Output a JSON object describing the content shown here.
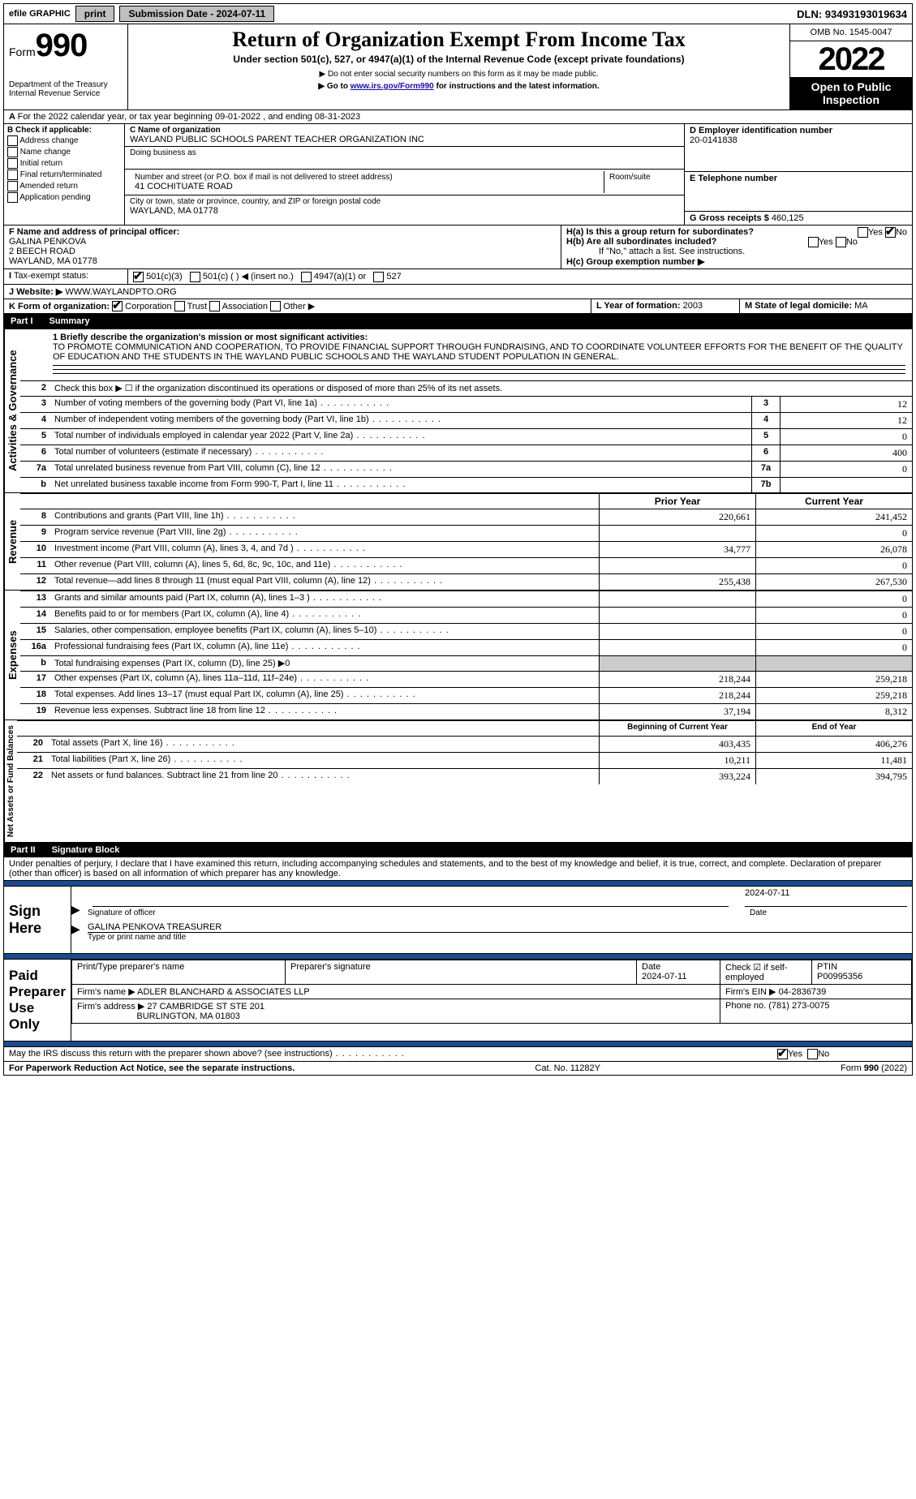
{
  "topbar": {
    "efile": "efile GRAPHIC",
    "print": "print",
    "submission": "Submission Date - 2024-07-11",
    "dln": "DLN: 93493193019634"
  },
  "header": {
    "form_prefix": "Form",
    "form_num": "990",
    "dept": "Department of the Treasury",
    "irs": "Internal Revenue Service",
    "title": "Return of Organization Exempt From Income Tax",
    "subtitle": "Under section 501(c), 527, or 4947(a)(1) of the Internal Revenue Code (except private foundations)",
    "note1": "▶ Do not enter social security numbers on this form as it may be made public.",
    "note2_pre": "▶ Go to ",
    "note2_link": "www.irs.gov/Form990",
    "note2_post": " for instructions and the latest information.",
    "omb": "OMB No. 1545-0047",
    "year": "2022",
    "otp": "Open to Public Inspection"
  },
  "A": {
    "text": "For the 2022 calendar year, or tax year beginning 09-01-2022    , and ending 08-31-2023"
  },
  "B": {
    "label": "B Check if applicable:",
    "items": [
      "Address change",
      "Name change",
      "Initial return",
      "Final return/terminated",
      "Amended return",
      "Application pending"
    ]
  },
  "C": {
    "name_label": "C Name of organization",
    "name": "WAYLAND PUBLIC SCHOOLS PARENT TEACHER ORGANIZATION INC",
    "dba_label": "Doing business as",
    "street_label": "Number and street (or P.O. box if mail is not delivered to street address)",
    "street": "41 COCHITUATE ROAD",
    "room_label": "Room/suite",
    "city_label": "City or town, state or province, country, and ZIP or foreign postal code",
    "city": "WAYLAND, MA  01778"
  },
  "D": {
    "label": "D Employer identification number",
    "val": "20-0141838"
  },
  "E": {
    "label": "E Telephone number"
  },
  "G": {
    "label": "G Gross receipts $",
    "val": "460,125"
  },
  "F": {
    "label": "F  Name and address of principal officer:",
    "name": "GALINA PENKOVA",
    "addr1": "2 BEECH ROAD",
    "addr2": "WAYLAND, MA  01778"
  },
  "H": {
    "a": "H(a)  Is this a group return for subordinates?",
    "b": "H(b)  Are all subordinates included?",
    "note": "If \"No,\" attach a list. See instructions.",
    "c": "H(c)  Group exemption number ▶",
    "yes": "Yes",
    "no": "No"
  },
  "I": {
    "label": "Tax-exempt status:",
    "opts": [
      "501(c)(3)",
      "501(c) (  ) ◀ (insert no.)",
      "4947(a)(1) or",
      "527"
    ]
  },
  "J": {
    "label": "Website: ▶",
    "val": "WWW.WAYLANDPTO.ORG"
  },
  "K": {
    "label": "K Form of organization:",
    "opts": [
      "Corporation",
      "Trust",
      "Association",
      "Other ▶"
    ]
  },
  "L": {
    "label": "L Year of formation:",
    "val": "2003"
  },
  "M": {
    "label": "M State of legal domicile:",
    "val": "MA"
  },
  "partI": {
    "label": "Part I",
    "title": "Summary"
  },
  "summary": {
    "l1_label": "1  Briefly describe the organization's mission or most significant activities:",
    "l1_text": "TO PROMOTE COMMUNICATION AND COOPERATION, TO PROVIDE FINANCIAL SUPPORT THROUGH FUNDRAISING, AND TO COORDINATE VOLUNTEER EFFORTS FOR THE BENEFIT OF THE QUALITY OF EDUCATION AND THE STUDENTS IN THE WAYLAND PUBLIC SCHOOLS AND THE WAYLAND STUDENT POPULATION IN GENERAL.",
    "l2": "Check this box ▶ ☐  if the organization discontinued its operations or disposed of more than 25% of its net assets.",
    "rows_ag": [
      {
        "n": "3",
        "desc": "Number of voting members of the governing body (Part VI, line 1a)",
        "val": "12"
      },
      {
        "n": "4",
        "desc": "Number of independent voting members of the governing body (Part VI, line 1b)",
        "val": "12"
      },
      {
        "n": "5",
        "desc": "Total number of individuals employed in calendar year 2022 (Part V, line 2a)",
        "val": "0"
      },
      {
        "n": "6",
        "desc": "Total number of volunteers (estimate if necessary)",
        "val": "400"
      },
      {
        "n": "7a",
        "desc": "Total unrelated business revenue from Part VIII, column (C), line 12",
        "val": "0"
      },
      {
        "n": "b",
        "desc": "Net unrelated business taxable income from Form 990-T, Part I, line 11",
        "nb": "7b",
        "val": ""
      }
    ],
    "hdr_prior": "Prior Year",
    "hdr_current": "Current Year",
    "rows_rev": [
      {
        "n": "8",
        "desc": "Contributions and grants (Part VIII, line 1h)",
        "p": "220,661",
        "c": "241,452"
      },
      {
        "n": "9",
        "desc": "Program service revenue (Part VIII, line 2g)",
        "p": "",
        "c": "0"
      },
      {
        "n": "10",
        "desc": "Investment income (Part VIII, column (A), lines 3, 4, and 7d )",
        "p": "34,777",
        "c": "26,078"
      },
      {
        "n": "11",
        "desc": "Other revenue (Part VIII, column (A), lines 5, 6d, 8c, 9c, 10c, and 11e)",
        "p": "",
        "c": "0"
      },
      {
        "n": "12",
        "desc": "Total revenue—add lines 8 through 11 (must equal Part VIII, column (A), line 12)",
        "p": "255,438",
        "c": "267,530"
      }
    ],
    "rows_exp": [
      {
        "n": "13",
        "desc": "Grants and similar amounts paid (Part IX, column (A), lines 1–3 )",
        "p": "",
        "c": "0"
      },
      {
        "n": "14",
        "desc": "Benefits paid to or for members (Part IX, column (A), line 4)",
        "p": "",
        "c": "0"
      },
      {
        "n": "15",
        "desc": "Salaries, other compensation, employee benefits (Part IX, column (A), lines 5–10)",
        "p": "",
        "c": "0"
      },
      {
        "n": "16a",
        "desc": "Professional fundraising fees (Part IX, column (A), line 11e)",
        "p": "",
        "c": "0"
      },
      {
        "n": "b",
        "desc": "Total fundraising expenses (Part IX, column (D), line 25) ▶0",
        "p": null,
        "c": null,
        "shaded": true
      },
      {
        "n": "17",
        "desc": "Other expenses (Part IX, column (A), lines 11a–11d, 11f–24e)",
        "p": "218,244",
        "c": "259,218"
      },
      {
        "n": "18",
        "desc": "Total expenses. Add lines 13–17 (must equal Part IX, column (A), line 25)",
        "p": "218,244",
        "c": "259,218"
      },
      {
        "n": "19",
        "desc": "Revenue less expenses. Subtract line 18 from line 12",
        "p": "37,194",
        "c": "8,312"
      }
    ],
    "hdr_begin": "Beginning of Current Year",
    "hdr_end": "End of Year",
    "rows_na": [
      {
        "n": "20",
        "desc": "Total assets (Part X, line 16)",
        "p": "403,435",
        "c": "406,276"
      },
      {
        "n": "21",
        "desc": "Total liabilities (Part X, line 26)",
        "p": "10,211",
        "c": "11,481"
      },
      {
        "n": "22",
        "desc": "Net assets or fund balances. Subtract line 21 from line 20",
        "p": "393,224",
        "c": "394,795"
      }
    ]
  },
  "tabs": {
    "ag": "Activities & Governance",
    "rev": "Revenue",
    "exp": "Expenses",
    "na": "Net Assets or Fund Balances"
  },
  "partII": {
    "label": "Part II",
    "title": "Signature Block"
  },
  "penalties": "Under penalties of perjury, I declare that I have examined this return, including accompanying schedules and statements, and to the best of my knowledge and belief, it is true, correct, and complete. Declaration of preparer (other than officer) is based on all information of which preparer has any knowledge.",
  "sign": {
    "label": "Sign Here",
    "sig_of_officer": "Signature of officer",
    "date": "Date",
    "date_val": "2024-07-11",
    "name": "GALINA PENKOVA  TREASURER",
    "name_label": "Type or print name and title"
  },
  "paid": {
    "label": "Paid Preparer Use Only",
    "h1": "Print/Type preparer's name",
    "h2": "Preparer's signature",
    "h3": "Date",
    "h3v": "2024-07-11",
    "h4": "Check ☑ if self-employed",
    "h5": "PTIN",
    "h5v": "P00995356",
    "firm_name_l": "Firm's name    ▶",
    "firm_name": "ADLER BLANCHARD & ASSOCIATES LLP",
    "firm_ein_l": "Firm's EIN ▶",
    "firm_ein": "04-2836739",
    "firm_addr_l": "Firm's address ▶",
    "firm_addr": "27 CAMBRIDGE ST STE 201",
    "firm_city": "BURLINGTON, MA  01803",
    "phone_l": "Phone no.",
    "phone": "(781) 273-0075"
  },
  "discuss": {
    "text": "May the IRS discuss this return with the preparer shown above? (see instructions)",
    "yes": "Yes",
    "no": "No"
  },
  "footer": {
    "left": "For Paperwork Reduction Act Notice, see the separate instructions.",
    "mid": "Cat. No. 11282Y",
    "right_pre": "Form ",
    "right_form": "990",
    "right_post": " (2022)"
  }
}
